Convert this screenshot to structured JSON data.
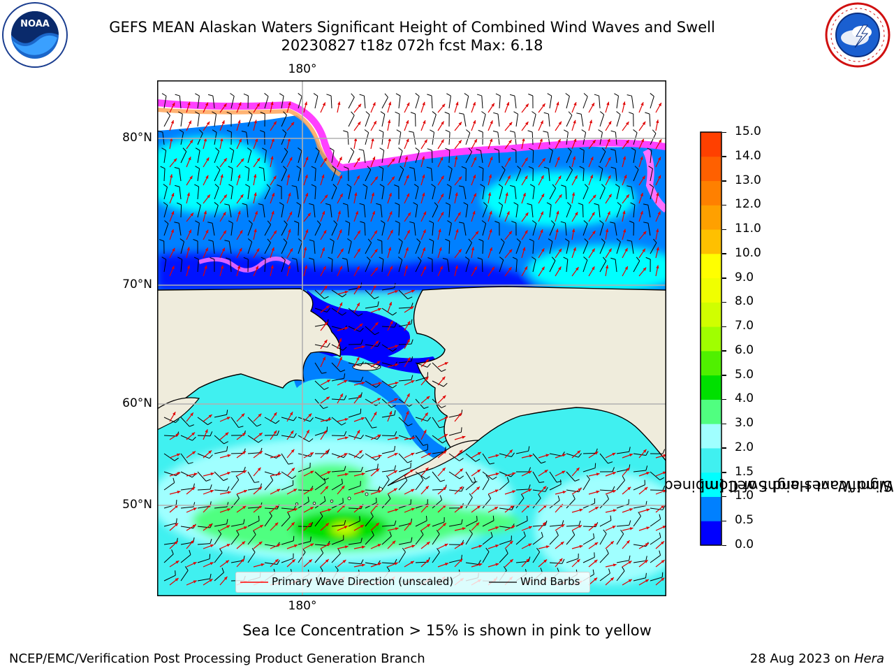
{
  "header": {
    "title_line1": "GEFS MEAN Alaskan Waters Significant Height of Combined Wind Waves and Swell",
    "title_line2": "20230827 t18z 072h fcst   Max: 6.18"
  },
  "logos": {
    "left": {
      "icon": "noaa-logo-icon",
      "text": "NOAA",
      "ring_text": "NATIONAL OCEANIC AND ATMOSPHERIC ADMINISTRATION · U.S. DEPARTMENT OF COMMERCE"
    },
    "right": {
      "icon": "nws-logo-icon",
      "ring_text": "NATIONAL WEATHER SERVICE"
    }
  },
  "map": {
    "lat_labels": [
      "80°N",
      "70°N",
      "60°N",
      "50°N"
    ],
    "lon_label_top": "180°",
    "lon_label_bottom": "180°",
    "colors": {
      "land": "#efecdc",
      "ice": "#ffffff",
      "grid": "#b0b0b0"
    }
  },
  "legend": {
    "wave_label": "Primary Wave Direction (unscaled)",
    "wind_label": "Wind Barbs",
    "wave_color": "#ff0000",
    "wind_color": "#000000"
  },
  "colorbar": {
    "title_line1": "Significant Height of Combined",
    "title_line2": "Wind Waves and Swell [m]",
    "ticks": [
      "15.0",
      "14.0",
      "13.0",
      "12.0",
      "11.0",
      "10.0",
      "9.0",
      "8.0",
      "7.0",
      "6.0",
      "5.0",
      "4.0",
      "3.0",
      "2.0",
      "1.5",
      "1.0",
      "0.5",
      "0.0"
    ],
    "colors": [
      "#0000ff",
      "#0080ff",
      "#00ffff",
      "#40f0f0",
      "#a0ffff",
      "#50ff80",
      "#00e000",
      "#50f000",
      "#a0ff00",
      "#d0ff00",
      "#f0ff00",
      "#ffff00",
      "#ffc000",
      "#ffa000",
      "#ff8000",
      "#ff6000",
      "#ff4000",
      "#ff0000"
    ]
  },
  "footer": {
    "caption": "Sea Ice Concentration > 15% is shown in pink to yellow",
    "left": "NCEP/EMC/Verification Post Processing Product Generation Branch",
    "right_date": "28 Aug 2023 on",
    "right_host": "Hera"
  }
}
